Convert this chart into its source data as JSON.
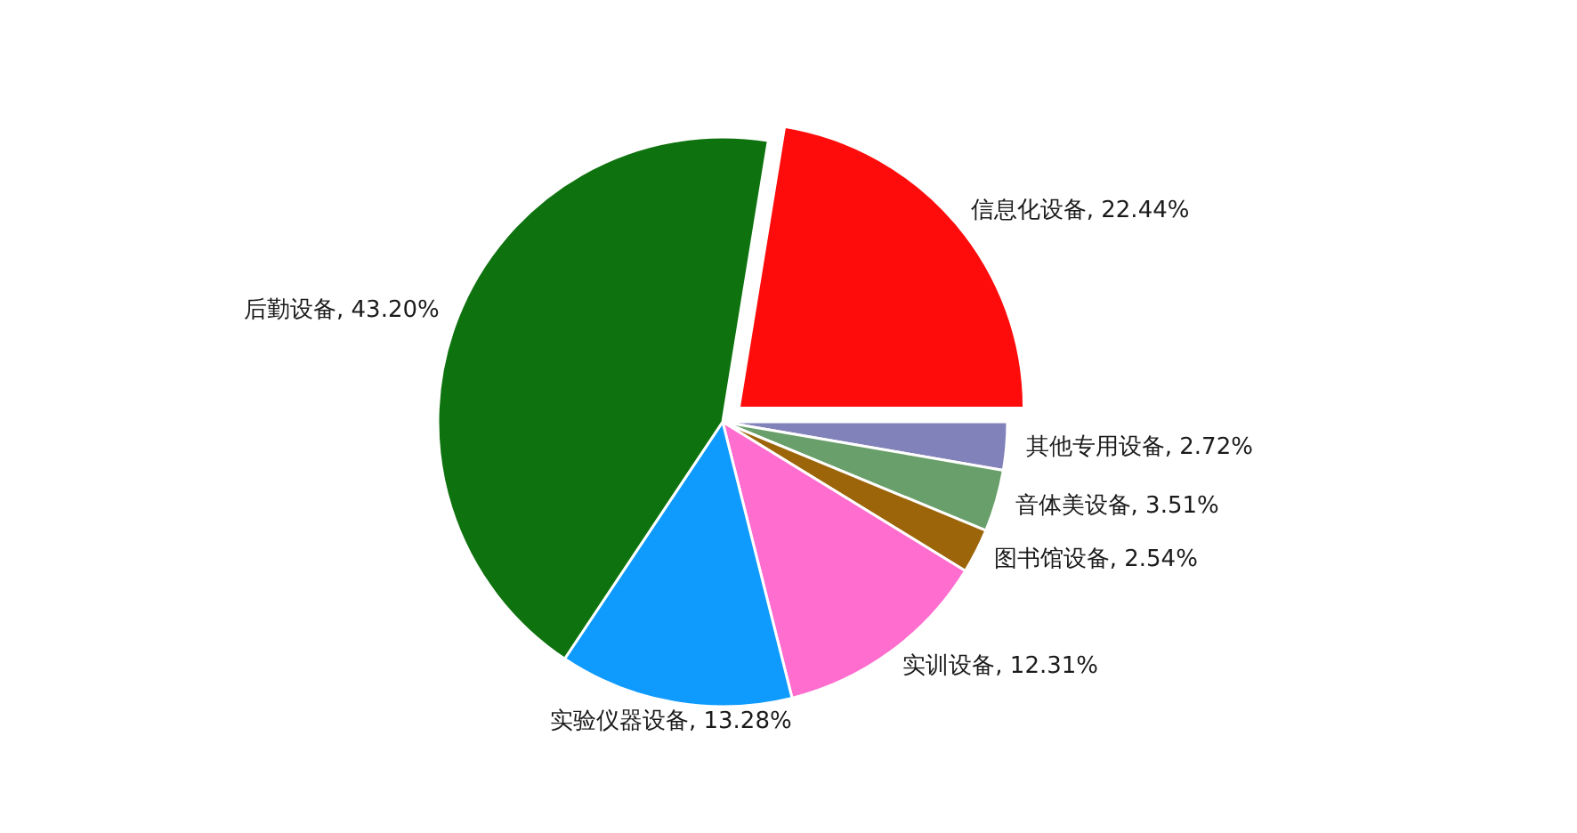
{
  "chart_data": {
    "type": "pie",
    "categories": [
      "信息化设备",
      "其他专用设备",
      "音体美设备",
      "图书馆设备",
      "实训设备",
      "实验仪器设备",
      "后勤设备"
    ],
    "values": [
      22.44,
      2.72,
      3.51,
      2.54,
      12.31,
      13.28,
      43.2
    ],
    "colors": [
      "#fe0c0c",
      "#8282bb",
      "#689f6a",
      "#9c650a",
      "#ff6dcf",
      "#0f9bfd",
      "#0e730e"
    ],
    "value_labels": [
      "22.44%",
      "2.72%",
      "3.51%",
      "2.54%",
      "12.31%",
      "13.28%",
      "43.20%"
    ],
    "legend": false
  }
}
